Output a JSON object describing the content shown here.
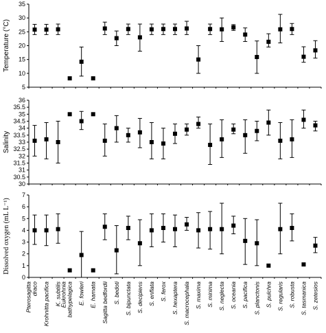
{
  "chart_data": [
    {
      "type": "scatter",
      "ylabel": "Temperature (°C)",
      "ylim": [
        5,
        35
      ],
      "yticks": [
        5,
        10,
        15,
        20,
        25,
        30,
        35
      ],
      "ytick_labels": [
        "5",
        "10",
        "15",
        "20",
        "25",
        "30",
        "35"
      ],
      "grid": false,
      "series": [
        {
          "values": [
            25.8,
            25.8,
            25.9,
            8.2,
            14.2,
            8.2,
            26.2,
            22.7,
            26.0,
            23.0,
            25.9,
            26.0,
            26.0,
            26.2,
            15.0,
            26.0,
            25.9,
            26.6,
            24.0,
            15.9,
            21.4,
            25.9,
            26.0,
            16.0,
            18.3
          ],
          "lower": [
            24.0,
            24.0,
            24.0,
            null,
            9.0,
            null,
            24.0,
            20.0,
            24.0,
            18.0,
            24.0,
            24.0,
            24.0,
            24.0,
            10.0,
            24.0,
            21.5,
            25.5,
            21.5,
            10.0,
            19.5,
            21.0,
            24.0,
            14.0,
            15.5
          ],
          "upper": [
            27.7,
            27.7,
            27.8,
            null,
            19.5,
            null,
            28.5,
            25.3,
            27.8,
            27.8,
            27.8,
            27.8,
            27.8,
            28.8,
            20.0,
            27.8,
            30.0,
            27.6,
            26.4,
            21.7,
            24.3,
            31.3,
            28.0,
            19.6,
            21.8
          ]
        }
      ]
    },
    {
      "type": "scatter",
      "ylabel": "Salinity",
      "ylim": [
        30,
        36
      ],
      "yticks": [
        30,
        30.5,
        31,
        31.5,
        32,
        32.5,
        33,
        33.5,
        34,
        34.5,
        35,
        35.5,
        36
      ],
      "ytick_labels": [
        "30",
        "30.5",
        "31",
        "31.5",
        "32",
        "32.5",
        "33",
        "33.5",
        "34",
        "34.5",
        "35",
        "35.5",
        "36"
      ],
      "grid": false,
      "series": [
        {
          "values": [
            33.1,
            33.2,
            33.0,
            35.0,
            34.5,
            35.0,
            33.1,
            34.0,
            33.5,
            33.7,
            33.0,
            32.9,
            33.6,
            33.9,
            34.3,
            32.8,
            33.2,
            33.9,
            33.5,
            33.8,
            34.4,
            33.1,
            33.2,
            34.6,
            34.2
          ],
          "lower": [
            32.0,
            31.8,
            31.5,
            null,
            33.9,
            null,
            32.0,
            33.0,
            33.0,
            32.6,
            31.8,
            31.8,
            32.9,
            33.5,
            34.0,
            31.4,
            31.9,
            33.6,
            32.2,
            33.1,
            33.5,
            31.8,
            31.9,
            34.0,
            33.8
          ],
          "upper": [
            34.2,
            34.4,
            34.5,
            null,
            35.2,
            null,
            34.3,
            34.9,
            34.0,
            34.7,
            34.4,
            34.0,
            34.3,
            34.3,
            34.8,
            34.3,
            34.6,
            34.3,
            34.6,
            34.5,
            35.3,
            34.4,
            34.6,
            35.3,
            34.5
          ]
        }
      ]
    },
    {
      "type": "scatter",
      "ylabel": "Dissolved oxygen (mL L⁻¹)",
      "ylim": [
        0,
        7
      ],
      "yticks": [
        0,
        1,
        2,
        3,
        4,
        5,
        6,
        7
      ],
      "ytick_labels": [
        "0",
        "1",
        "2",
        "3",
        "4",
        "5",
        "6",
        "7"
      ],
      "grid": false,
      "series": [
        {
          "values": [
            4.0,
            4.0,
            4.1,
            0.6,
            1.9,
            0.6,
            4.3,
            2.3,
            4.2,
            2.9,
            4.0,
            4.2,
            4.1,
            4.5,
            4.0,
            4.1,
            4.1,
            4.4,
            3.1,
            2.9,
            1.0,
            4.1,
            4.2,
            1.1,
            2.7
          ],
          "lower": [
            2.8,
            2.7,
            2.9,
            null,
            0.0,
            null,
            3.2,
            0.3,
            3.2,
            1.0,
            2.6,
            3.0,
            2.6,
            4.0,
            2.5,
            2.4,
            2.0,
            3.7,
            1.1,
            1.0,
            null,
            2.0,
            3.1,
            null,
            2.1
          ],
          "upper": [
            5.3,
            5.3,
            5.4,
            null,
            3.9,
            null,
            5.4,
            4.4,
            5.2,
            4.9,
            5.4,
            5.4,
            5.3,
            5.1,
            5.5,
            5.6,
            6.3,
            5.2,
            5.0,
            4.9,
            null,
            6.3,
            5.4,
            null,
            3.4
          ]
        }
      ]
    }
  ],
  "categories": [
    [
      "Pterosagitta",
      "draco"
    ],
    [
      "Krohnitta pacifica"
    ],
    [
      "K. subtilis"
    ],
    [
      "Eukrohnia",
      "bathypelagica"
    ],
    [
      "E. fowleri"
    ],
    [
      "E. hamata"
    ],
    [
      "Sagitta bedfordii"
    ],
    [
      "S. bedoti"
    ],
    [
      "S. bipunctata"
    ],
    [
      "S. decipiens"
    ],
    [
      "S. enflata"
    ],
    [
      "S. ferox"
    ],
    [
      "S. hexaptera"
    ],
    [
      "S. macrocephala"
    ],
    [
      "S. maxima"
    ],
    [
      "S. minima"
    ],
    [
      "S. neglecta"
    ],
    [
      "S. oceania"
    ],
    [
      "S. pacifica"
    ],
    [
      "S. planctonis"
    ],
    [
      "S. pulchra"
    ],
    [
      "S. regularis"
    ],
    [
      "S. robusta"
    ],
    [
      "S. tasmanica"
    ],
    [
      "S. zetesios"
    ]
  ]
}
